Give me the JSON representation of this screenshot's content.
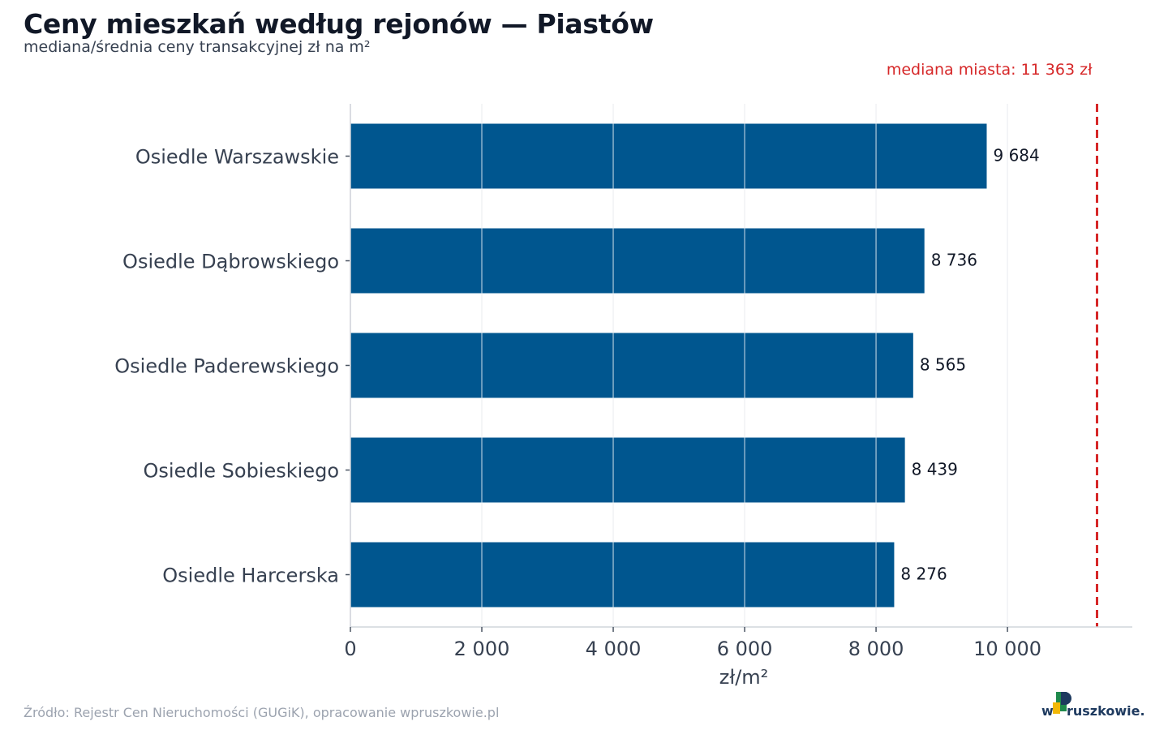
{
  "header": {
    "title": "Ceny mieszkań według rejonów — Piastów",
    "subtitle": "mediana/średnia ceny transakcyjnej zł na m²"
  },
  "footer": {
    "source": "Źródło: Rejestr Cen Nieruchomości (GUGiK), opracowanie wpruszkowie.pl"
  },
  "logo": {
    "text_w": "w",
    "text_rest": "ruszkowie.pl"
  },
  "colors": {
    "bar": "#00568f",
    "reference_line": "#d62728",
    "grid": "#e5e7eb",
    "axis_text": "#374151",
    "logo_green": "#1f8a4c",
    "logo_yellow": "#f2b807",
    "logo_navy": "#1e3a5f"
  },
  "chart_data": {
    "type": "bar",
    "orientation": "horizontal",
    "categories": [
      "Osiedle Warszawskie",
      "Osiedle Dąbrowskiego",
      "Osiedle Paderewskiego",
      "Osiedle Sobieskiego",
      "Osiedle Harcerska"
    ],
    "values": [
      9684,
      8736,
      8565,
      8439,
      8276
    ],
    "value_labels": [
      "9 684",
      "8 736",
      "8 565",
      "8 439",
      "8 276"
    ],
    "xlabel": "zł/m²",
    "ylabel": "",
    "xlim": [
      0,
      11900
    ],
    "xticks": [
      0,
      2000,
      4000,
      6000,
      8000,
      10000
    ],
    "xtick_labels": [
      "0",
      "2 000",
      "4 000",
      "6 000",
      "8 000",
      "10 000"
    ],
    "grid": "vertical",
    "reference_line": {
      "value": 11363,
      "label": "mediana miasta: 11 363 zł",
      "style": "dashed"
    }
  }
}
